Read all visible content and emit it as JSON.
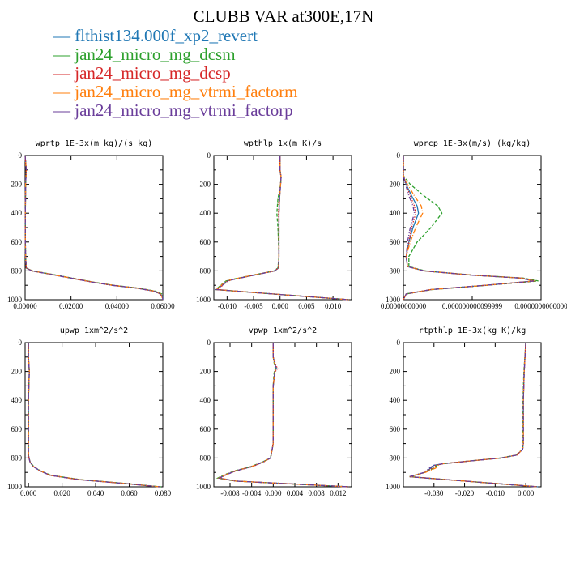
{
  "title": "CLUBB VAR at300E,17N",
  "series": [
    {
      "name": "flthist134.000f_xp2_revert",
      "color": "#1f77b4",
      "dash": "none"
    },
    {
      "name": "jan24_micro_mg_dcsm",
      "color": "#2ca02c",
      "dash": "4,2"
    },
    {
      "name": "jan24_micro_mg_dcsp",
      "color": "#d62728",
      "dash": "1.5,1.5"
    },
    {
      "name": "jan24_micro_mg_vtrmi_factorm",
      "color": "#ff7f0e",
      "dash": "6,2,1,2"
    },
    {
      "name": "jan24_micro_mg_vtrmi_factorp",
      "color": "#6a3d9a",
      "dash": "5,2,1,2,1,2"
    }
  ],
  "chart_data": [
    {
      "type": "line",
      "title": "wprtp  1E-3x(m kg)/(s kg)",
      "xlim": [
        0,
        0.06
      ],
      "ylim": [
        1000,
        0
      ],
      "xticks": [
        "0.00000",
        "0.02000",
        "0.04000",
        "0.06000"
      ],
      "yticks": [
        "0",
        "200",
        "400",
        "600",
        "800",
        "1000"
      ],
      "y": [
        0,
        100,
        200,
        400,
        600,
        700,
        780,
        800,
        820,
        850,
        880,
        900,
        920,
        940,
        960,
        980,
        1000
      ],
      "series": [
        {
          "x": [
            0.0,
            0.0005,
            0.0002,
            0.0001,
            0.0001,
            0.0002,
            0.0005,
            0.003,
            0.01,
            0.02,
            0.03,
            0.038,
            0.049,
            0.056,
            0.059,
            0.06,
            0.06
          ]
        },
        {
          "x": [
            0.0,
            0.0005,
            0.0002,
            0.0001,
            0.0001,
            0.0002,
            0.0005,
            0.0032,
            0.0105,
            0.0205,
            0.0305,
            0.0385,
            0.0495,
            0.0565,
            0.0595,
            0.06,
            0.06
          ]
        },
        {
          "x": [
            0.0,
            0.0005,
            0.0002,
            0.0001,
            0.0001,
            0.0002,
            0.0005,
            0.0028,
            0.0098,
            0.0198,
            0.0298,
            0.0378,
            0.0488,
            0.0558,
            0.0588,
            0.0597,
            0.06
          ]
        },
        {
          "x": [
            0.0,
            0.0005,
            0.0002,
            0.0001,
            0.0001,
            0.0002,
            0.0005,
            0.0031,
            0.0102,
            0.0202,
            0.0302,
            0.0382,
            0.0492,
            0.056,
            0.059,
            0.0596,
            0.06
          ]
        },
        {
          "x": [
            0.0,
            0.0005,
            0.0002,
            0.0001,
            0.0001,
            0.0002,
            0.0005,
            0.0029,
            0.0099,
            0.0199,
            0.0299,
            0.0379,
            0.0489,
            0.0559,
            0.0589,
            0.0599,
            0.06
          ]
        }
      ]
    },
    {
      "type": "line",
      "title": "wpthlp  1x(m K)/s",
      "xlim": [
        -0.0125,
        0.0135
      ],
      "ylim": [
        1000,
        0
      ],
      "xticks": [
        "-0.010",
        "-0.005",
        "0.000",
        "0.005",
        "0.010"
      ],
      "xtick_values": [
        -0.01,
        -0.005,
        0.0,
        0.005,
        0.01
      ],
      "yticks": [
        "0",
        "200",
        "400",
        "600",
        "800",
        "1000"
      ],
      "y": [
        0,
        100,
        150,
        200,
        300,
        400,
        500,
        600,
        700,
        780,
        800,
        830,
        860,
        870,
        900,
        930,
        950,
        1000
      ],
      "series": [
        {
          "x": [
            0.0,
            0.0,
            0.0002,
            0.0001,
            -0.0001,
            -0.0002,
            -0.0002,
            -0.0002,
            -0.0002,
            -0.0003,
            -0.001,
            -0.005,
            -0.009,
            -0.01,
            -0.011,
            -0.012,
            -0.005,
            0.013
          ]
        },
        {
          "x": [
            0.0,
            0.0,
            0.0002,
            0.0001,
            -0.0004,
            -0.0006,
            -0.0004,
            -0.0003,
            -0.0002,
            -0.0004,
            -0.0011,
            -0.0052,
            -0.0092,
            -0.0102,
            -0.0112,
            -0.0121,
            -0.005,
            0.013
          ]
        },
        {
          "x": [
            0.0,
            0.0,
            0.0002,
            0.0001,
            -0.0002,
            -0.0003,
            -0.0002,
            -0.0002,
            -0.0002,
            -0.0003,
            -0.001,
            -0.005,
            -0.0088,
            -0.0098,
            -0.0108,
            -0.0119,
            -0.0049,
            0.013
          ]
        },
        {
          "x": [
            0.0,
            0.0,
            0.0002,
            0.0001,
            -0.0001,
            -0.0002,
            -0.0002,
            -0.0002,
            -0.0002,
            -0.0003,
            -0.001,
            -0.0051,
            -0.0091,
            -0.0101,
            -0.0111,
            -0.012,
            -0.0051,
            0.013
          ]
        },
        {
          "x": [
            0.0,
            0.0,
            0.0002,
            0.0001,
            -0.0001,
            -0.0002,
            -0.0002,
            -0.0002,
            -0.0002,
            -0.0003,
            -0.001,
            -0.0049,
            -0.0089,
            -0.0099,
            -0.0109,
            -0.012,
            -0.005,
            0.013
          ]
        }
      ]
    },
    {
      "type": "line",
      "title": "wprcp  1E-3x(m/s) (kg/kg)",
      "xlim": [
        0,
        1
      ],
      "ylim": [
        1000,
        0
      ],
      "xticks": [
        "0.00000000000",
        "0.000000000099999",
        "0.0000000000000"
      ],
      "xtick_values": [
        0,
        0.5,
        1
      ],
      "yticks": [
        "0",
        "200",
        "400",
        "600",
        "800",
        "1000"
      ],
      "y": [
        0,
        140,
        200,
        280,
        350,
        400,
        500,
        600,
        700,
        770,
        800,
        830,
        850,
        870,
        900,
        930,
        960,
        1000
      ],
      "series": [
        {
          "x": [
            0.0,
            0.0,
            0.02,
            0.06,
            0.1,
            0.11,
            0.07,
            0.04,
            0.02,
            0.03,
            0.15,
            0.5,
            0.85,
            0.95,
            0.6,
            0.2,
            0.02,
            0.0
          ]
        },
        {
          "x": [
            0.0,
            0.0,
            0.05,
            0.15,
            0.25,
            0.28,
            0.2,
            0.1,
            0.04,
            0.04,
            0.16,
            0.51,
            0.87,
            0.98,
            0.61,
            0.21,
            0.02,
            0.0
          ]
        },
        {
          "x": [
            0.0,
            0.0,
            0.02,
            0.05,
            0.08,
            0.09,
            0.06,
            0.04,
            0.02,
            0.03,
            0.15,
            0.5,
            0.86,
            0.96,
            0.6,
            0.2,
            0.02,
            0.0
          ]
        },
        {
          "x": [
            0.0,
            0.0,
            0.03,
            0.08,
            0.13,
            0.14,
            0.09,
            0.05,
            0.02,
            0.03,
            0.15,
            0.5,
            0.85,
            0.95,
            0.6,
            0.2,
            0.02,
            0.0
          ]
        },
        {
          "x": [
            0.0,
            0.0,
            0.015,
            0.04,
            0.07,
            0.08,
            0.05,
            0.03,
            0.02,
            0.03,
            0.15,
            0.5,
            0.85,
            0.95,
            0.6,
            0.2,
            0.02,
            0.0
          ]
        }
      ]
    },
    {
      "type": "line",
      "title": "upwp  1xm^2/s^2",
      "xlim": [
        -0.002,
        0.08
      ],
      "ylim": [
        1000,
        0
      ],
      "xticks": [
        "0.000",
        "0.020",
        "0.040",
        "0.060",
        "0.080"
      ],
      "xtick_values": [
        0,
        0.02,
        0.04,
        0.06,
        0.08
      ],
      "yticks": [
        "0",
        "200",
        "400",
        "600",
        "800",
        "1000"
      ],
      "y": [
        0,
        100,
        200,
        300,
        400,
        600,
        780,
        800,
        830,
        860,
        890,
        920,
        950,
        975,
        1000
      ],
      "series": [
        {
          "x": [
            0.0,
            0.0,
            0.0005,
            0.0002,
            0.0,
            0.0,
            0.0,
            0.0003,
            0.001,
            0.003,
            0.007,
            0.013,
            0.03,
            0.055,
            0.078
          ]
        },
        {
          "x": [
            0.0,
            0.0,
            0.0005,
            0.0002,
            0.0,
            0.0,
            0.0,
            0.0003,
            0.0011,
            0.0032,
            0.0072,
            0.0135,
            0.031,
            0.056,
            0.079
          ]
        },
        {
          "x": [
            0.0,
            0.0,
            0.0005,
            0.0002,
            0.0,
            0.0,
            0.0,
            0.0003,
            0.001,
            0.0029,
            0.0069,
            0.0128,
            0.0295,
            0.0545,
            0.0775
          ]
        },
        {
          "x": [
            0.0,
            0.0,
            0.0005,
            0.0002,
            0.0,
            0.0,
            0.0,
            0.0003,
            0.001,
            0.0031,
            0.0071,
            0.0132,
            0.0305,
            0.0555,
            0.0785
          ]
        },
        {
          "x": [
            0.0,
            0.0,
            0.0005,
            0.0002,
            0.0,
            0.0,
            0.0,
            0.0003,
            0.001,
            0.003,
            0.007,
            0.013,
            0.03,
            0.055,
            0.078
          ]
        }
      ]
    },
    {
      "type": "line",
      "title": "vpwp  1xm^2/s^2",
      "xlim": [
        -0.011,
        0.0145
      ],
      "ylim": [
        1000,
        0
      ],
      "xticks": [
        "-0.008",
        "-0.004",
        "0.000",
        "0.004",
        "0.008",
        "0.012"
      ],
      "xtick_values": [
        -0.008,
        -0.004,
        0.0,
        0.004,
        0.008,
        0.012
      ],
      "yticks": [
        "0",
        "200",
        "400",
        "600",
        "800",
        "1000"
      ],
      "y": [
        0,
        100,
        150,
        180,
        200,
        230,
        300,
        500,
        700,
        800,
        830,
        860,
        890,
        920,
        940,
        960,
        1000
      ],
      "series": [
        {
          "x": [
            0.0,
            0.0,
            0.0003,
            0.0006,
            0.0003,
            0.0002,
            0.0,
            0.0,
            0.0,
            -0.0005,
            -0.002,
            -0.004,
            -0.007,
            -0.009,
            -0.01,
            -0.007,
            0.014
          ]
        },
        {
          "x": [
            0.0,
            0.0,
            0.0002,
            0.0004,
            0.0002,
            0.0001,
            0.0,
            0.0,
            0.0,
            -0.0005,
            -0.0021,
            -0.0042,
            -0.0072,
            -0.0093,
            -0.0103,
            -0.0071,
            0.014
          ]
        },
        {
          "x": [
            0.0,
            0.0,
            0.0004,
            0.0008,
            0.0004,
            0.0002,
            0.0,
            0.0,
            0.0,
            -0.0005,
            -0.0019,
            -0.0039,
            -0.0069,
            -0.0089,
            -0.0099,
            -0.0069,
            0.014
          ]
        },
        {
          "x": [
            0.0,
            0.0,
            0.0003,
            0.0005,
            0.0003,
            0.0002,
            0.0,
            0.0,
            0.0,
            -0.0005,
            -0.002,
            -0.0041,
            -0.0071,
            -0.0091,
            -0.0101,
            -0.007,
            0.014
          ]
        },
        {
          "x": [
            0.0,
            0.0,
            0.0003,
            0.0006,
            0.0003,
            0.0002,
            0.0,
            0.0,
            0.0,
            -0.0005,
            -0.002,
            -0.004,
            -0.007,
            -0.009,
            -0.01,
            -0.007,
            0.014
          ]
        }
      ]
    },
    {
      "type": "line",
      "title": "rtpthlp  1E-3x(kg K)/kg",
      "xlim": [
        -0.04,
        0.005
      ],
      "ylim": [
        1000,
        0
      ],
      "xticks": [
        "-0.030",
        "-0.020",
        "-0.010",
        "0.000"
      ],
      "xtick_values": [
        -0.03,
        -0.02,
        -0.01,
        0.0
      ],
      "yticks": [
        "0",
        "200",
        "400",
        "600",
        "800",
        "1000"
      ],
      "y": [
        0,
        200,
        400,
        600,
        700,
        740,
        780,
        800,
        820,
        840,
        850,
        870,
        900,
        930,
        960,
        1000
      ],
      "series": [
        {
          "x": [
            0.0,
            -0.0005,
            -0.0008,
            -0.0008,
            -0.0008,
            -0.001,
            -0.003,
            -0.008,
            -0.018,
            -0.027,
            -0.03,
            -0.031,
            -0.033,
            -0.038,
            -0.02,
            0.004
          ]
        },
        {
          "x": [
            0.0,
            -0.0006,
            -0.0009,
            -0.0009,
            -0.0009,
            -0.0011,
            -0.0032,
            -0.0082,
            -0.0182,
            -0.0272,
            -0.029,
            -0.03,
            -0.033,
            -0.038,
            -0.02,
            0.004
          ]
        },
        {
          "x": [
            0.0,
            -0.0005,
            -0.0008,
            -0.0008,
            -0.0008,
            -0.001,
            -0.0029,
            -0.0079,
            -0.0179,
            -0.0269,
            -0.0295,
            -0.0305,
            -0.033,
            -0.038,
            -0.02,
            0.004
          ]
        },
        {
          "x": [
            0.0,
            -0.0005,
            -0.0008,
            -0.0008,
            -0.0008,
            -0.001,
            -0.0031,
            -0.0081,
            -0.0181,
            -0.0271,
            -0.0285,
            -0.0295,
            -0.0328,
            -0.0379,
            -0.02,
            0.004
          ]
        },
        {
          "x": [
            0.0,
            -0.0005,
            -0.0008,
            -0.0008,
            -0.0008,
            -0.001,
            -0.003,
            -0.008,
            -0.018,
            -0.027,
            -0.03,
            -0.0315,
            -0.0332,
            -0.0381,
            -0.02,
            0.004
          ]
        }
      ]
    }
  ]
}
